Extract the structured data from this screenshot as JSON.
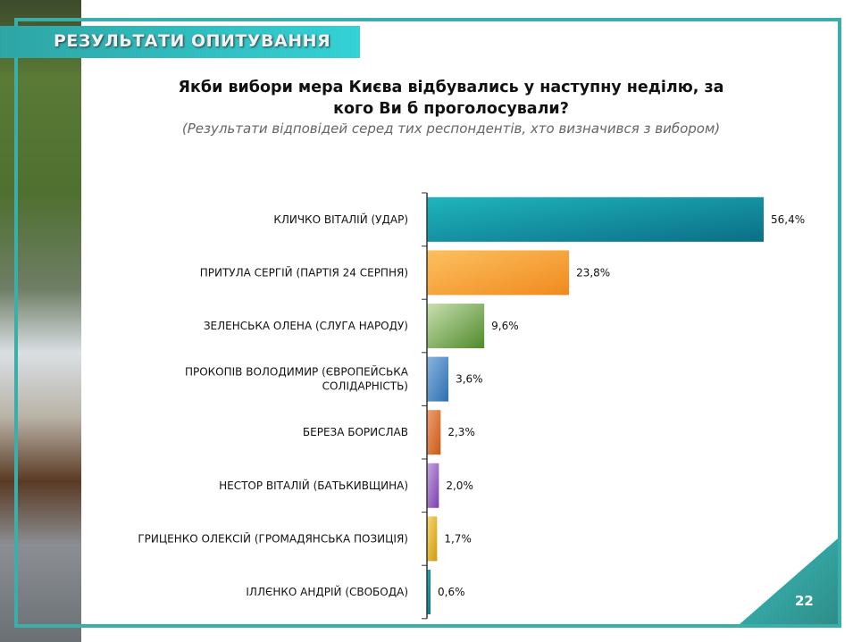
{
  "header": {
    "banner": "РЕЗУЛЬТАТИ ОПИТУВАННЯ",
    "page_number": "22"
  },
  "chart_data": {
    "type": "bar",
    "orientation": "horizontal",
    "title": "Якби вибори мера Києва відбувались у наступну неділю, за кого Ви б проголосували?",
    "subtitle": "(Результати відповідей серед тих респондентів, хто визначився з вибором)",
    "categories": [
      [
        "КЛИЧКО ВІТАЛІЙ (УДАР)"
      ],
      [
        "ПРИТУЛА СЕРГІЙ (ПАРТІЯ 24 СЕРПНЯ)"
      ],
      [
        "ЗЕЛЕНСЬКА ОЛЕНА (СЛУГА НАРОДУ)"
      ],
      [
        "ПРОКОПІВ ВОЛОДИМИР (ЄВРОПЕЙСЬКА",
        "СОЛІДАРНІСТЬ)"
      ],
      [
        "БЕРЕЗА БОРИСЛАВ"
      ],
      [
        "НЕСТОР ВІТАЛІЙ (БАТЬКИВЩИНА)"
      ],
      [
        "ГРИЦЕНКО ОЛЕКСІЙ (ГРОМАДЯНСЬКА ПОЗИЦІЯ)"
      ],
      [
        "ІЛЛЄНКО АНДРІЙ (СВОБОДА)"
      ]
    ],
    "values": [
      56.4,
      23.8,
      9.6,
      3.6,
      2.3,
      2.0,
      1.7,
      0.6
    ],
    "value_labels": [
      "56,4%",
      "23,8%",
      "9,6%",
      "3,6%",
      "2,3%",
      "2,0%",
      "1,7%",
      "0,6%"
    ],
    "colors": [
      [
        "#1fb5bd",
        "#0b6f86"
      ],
      [
        "#fcc060",
        "#f08a1e"
      ],
      [
        "#c8e0b0",
        "#4f8a2a"
      ],
      [
        "#8ab4e0",
        "#2d6fb0"
      ],
      [
        "#f0a070",
        "#c85a18"
      ],
      [
        "#c8a8e0",
        "#7a3fb0"
      ],
      [
        "#f8d870",
        "#d09a10"
      ],
      [
        "#2ab0b8",
        "#0b7080"
      ]
    ],
    "xlim": [
      0,
      56.4
    ]
  }
}
